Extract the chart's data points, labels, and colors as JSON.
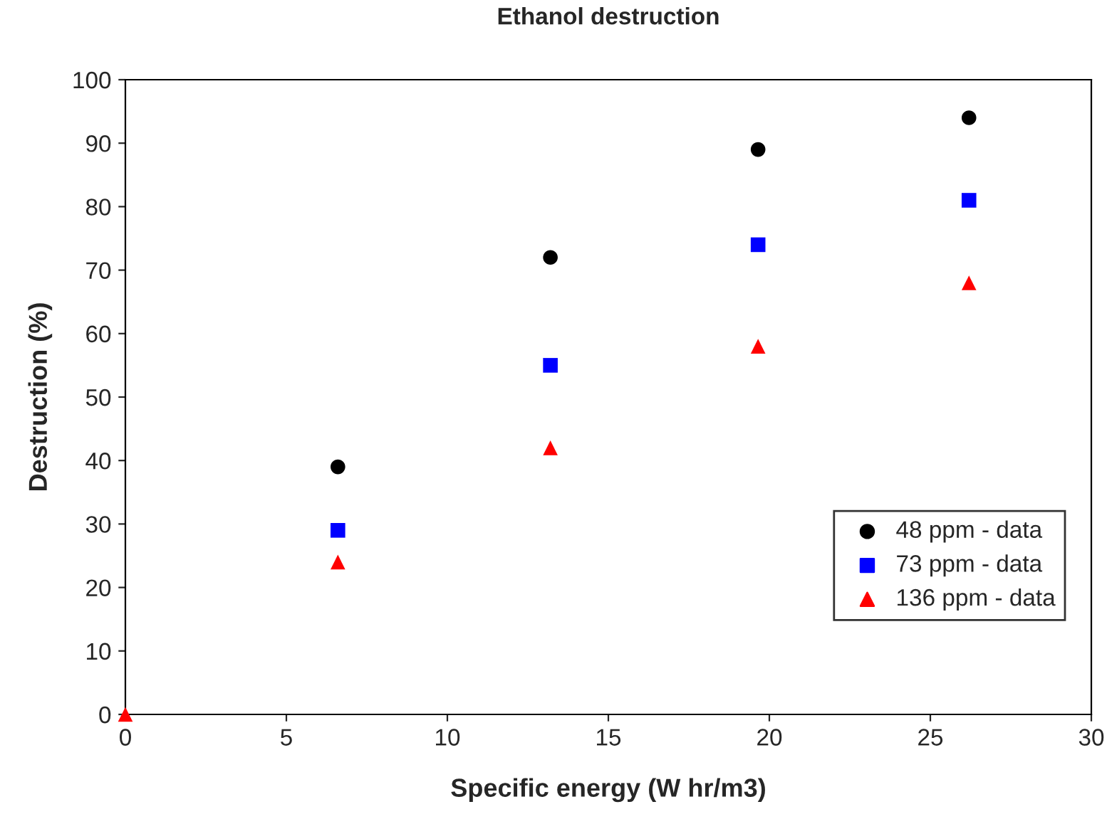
{
  "chart_data": {
    "type": "scatter",
    "title": "Ethanol destruction",
    "xlabel": "Specific energy (W hr/m3)",
    "ylabel": "Destruction (%)",
    "x": [
      0,
      6.6,
      13.2,
      19.65,
      26.2
    ],
    "series": [
      {
        "name": "48 ppm - data",
        "color": "#000000",
        "marker": "circle",
        "values": [
          null,
          39,
          72,
          89,
          94
        ]
      },
      {
        "name": "73 ppm - data",
        "color": "#0000ff",
        "marker": "square",
        "values": [
          null,
          29,
          55,
          74,
          81
        ]
      },
      {
        "name": "136 ppm - data",
        "color": "#ff0000",
        "marker": "triangle",
        "values": [
          0,
          24,
          42,
          58,
          68
        ]
      }
    ],
    "xlim": [
      0,
      30
    ],
    "xticks": [
      0,
      5,
      10,
      15,
      20,
      25,
      30
    ],
    "ylim": [
      0,
      100
    ],
    "yticks": [
      0,
      10,
      20,
      30,
      40,
      50,
      60,
      70,
      80,
      90,
      100
    ],
    "grid": false,
    "legend": "bottom right"
  }
}
